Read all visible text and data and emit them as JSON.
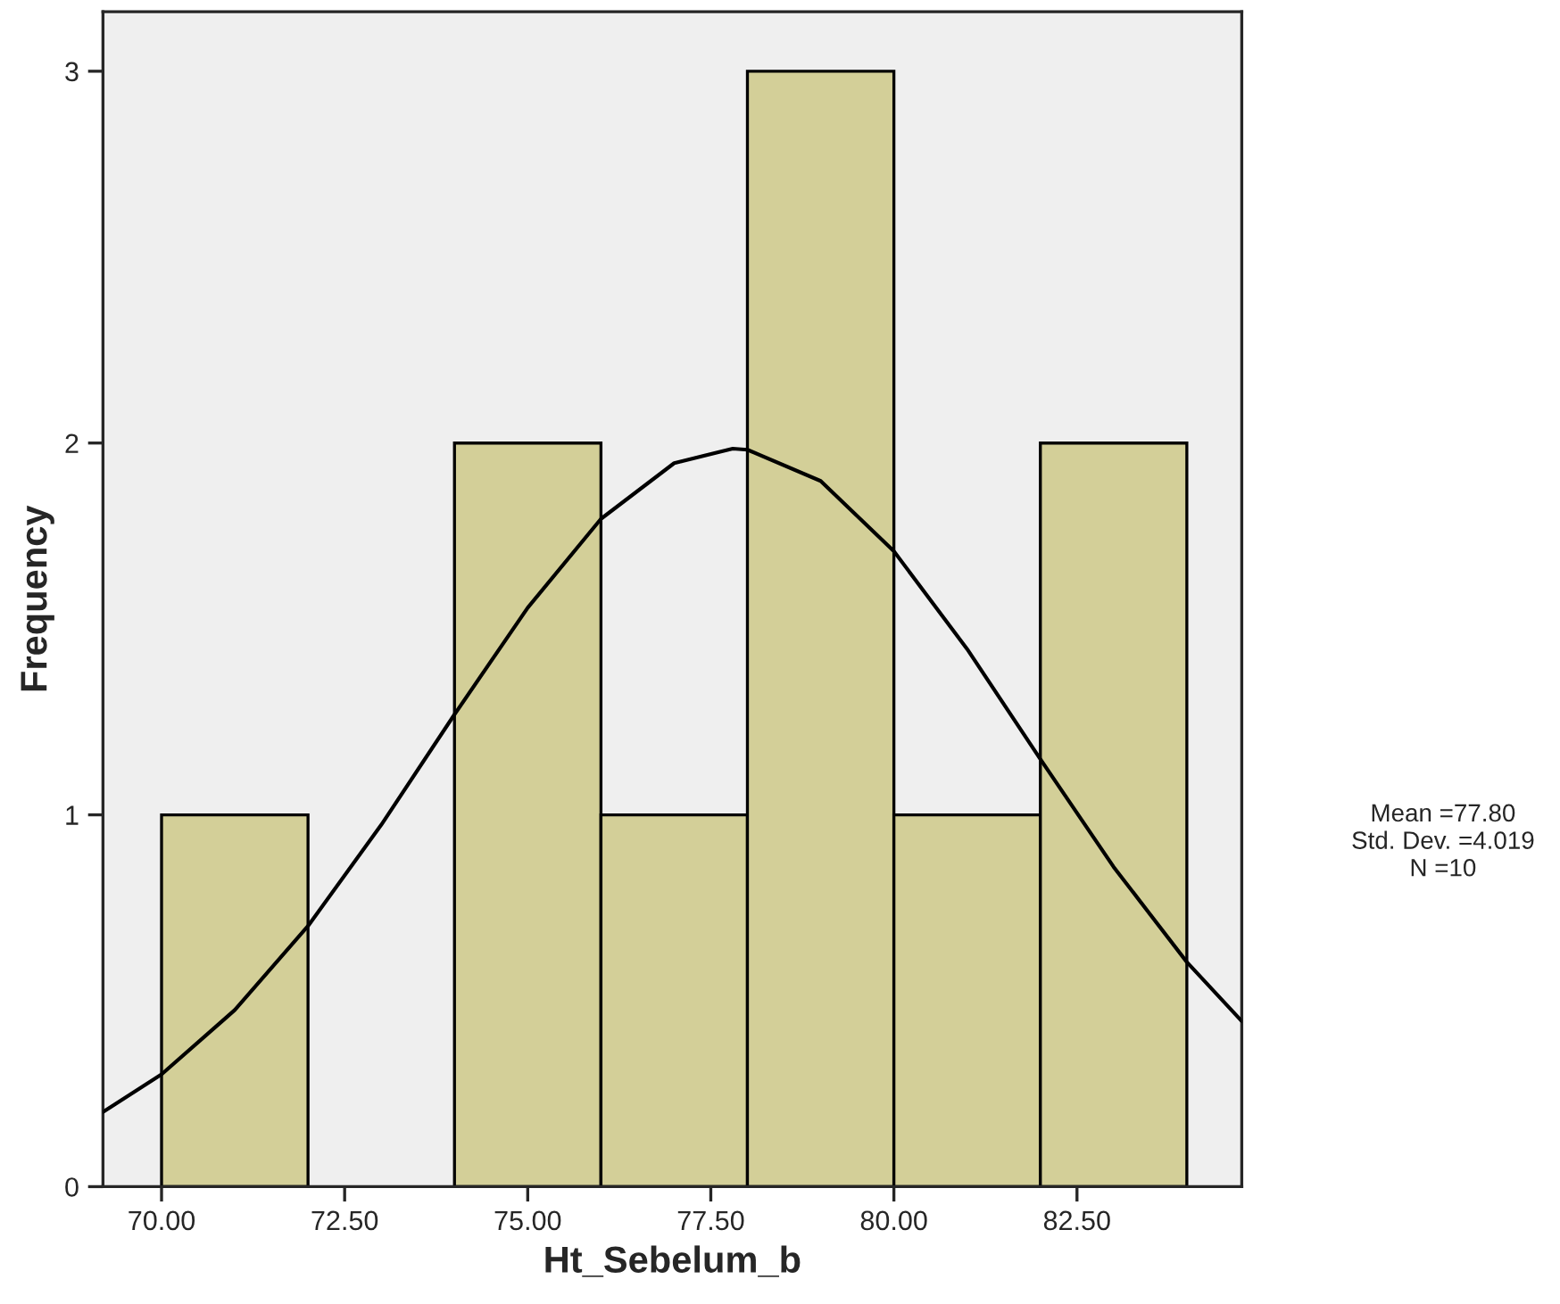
{
  "chart_data": {
    "type": "histogram",
    "xlabel": "Ht_Sebelum_b",
    "ylabel": "Frequency",
    "bins": [
      70,
      72,
      74,
      76,
      78,
      80,
      82,
      84
    ],
    "values": [
      1,
      0,
      2,
      1,
      3,
      1,
      2
    ],
    "color": "#d3cf98",
    "series": [
      {
        "type": "line",
        "color": "#000000",
        "x": [
          69.2,
          70,
          71,
          72,
          73,
          74,
          75,
          76,
          77,
          77.8,
          78,
          79,
          80,
          81,
          82,
          83,
          84,
          84.75
        ],
        "values": [
          0.201,
          0.302,
          0.475,
          0.701,
          0.973,
          1.27,
          1.557,
          1.796,
          1.946,
          1.985,
          1.982,
          1.898,
          1.709,
          1.446,
          1.15,
          0.86,
          0.604,
          0.445
        ]
      }
    ],
    "xlim": [
      69.2,
      84.75
    ],
    "ylim": [
      0,
      3.16
    ],
    "xticks": [
      {
        "value": 70,
        "label": "70.00"
      },
      {
        "value": 72.5,
        "label": "72.50"
      },
      {
        "value": 75,
        "label": "75.00"
      },
      {
        "value": 77.5,
        "label": "77.50"
      },
      {
        "value": 80,
        "label": "80.00"
      },
      {
        "value": 82.5,
        "label": "82.50"
      }
    ],
    "yticks": [
      0,
      1,
      2,
      3
    ],
    "grid": false,
    "legend": false,
    "annotations": [
      "Mean =77.80",
      "Std. Dev. =4.019",
      "N =10"
    ]
  }
}
